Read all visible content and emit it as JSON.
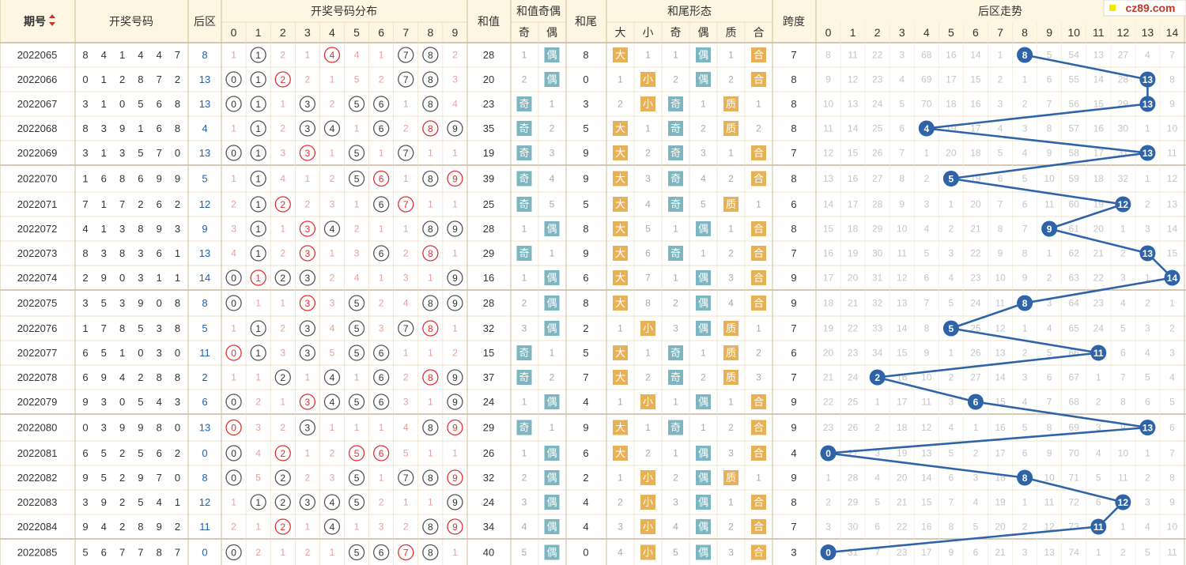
{
  "watermark": "cz89.com",
  "headers": {
    "issue": "期号",
    "sort_icon": "sort-up-down-icon",
    "numbers": "开奖号码",
    "back": "后区",
    "dist": "开奖号码分布",
    "sum": "和值",
    "sum_parity": "和值奇偶",
    "odd": "奇",
    "even": "偶",
    "tail": "和尾",
    "tail_form": "和尾形态",
    "big": "大",
    "small": "小",
    "prime": "质",
    "composite": "合",
    "span": "跨度",
    "trend": "后区走势"
  },
  "dist_digits": [
    "0",
    "1",
    "2",
    "3",
    "4",
    "5",
    "6",
    "7",
    "8",
    "9"
  ],
  "trend_cols": [
    "0",
    "1",
    "2",
    "3",
    "4",
    "5",
    "6",
    "7",
    "8",
    "9",
    "10",
    "11",
    "12",
    "13",
    "14"
  ],
  "colors": {
    "header_bg": "#fdf6e3",
    "grid": "#ead9b8",
    "miss": "#c8c8c8",
    "red": "#e03030",
    "gold": "#e7b158",
    "teal": "#7db5c0",
    "ball": "#2f63a8",
    "back_blue": "#1f5fb0"
  },
  "rows": [
    {
      "issue": "2022065",
      "nums": [
        "8",
        "4",
        "1",
        "4",
        "4",
        "7"
      ],
      "back": "8",
      "dist": [
        "1",
        "①",
        "2",
        "1",
        "④",
        "4",
        "1",
        "⑦",
        "⑧",
        "2"
      ],
      "sum": "28",
      "so": "1",
      "se": "偶",
      "tail": "8",
      "tb": "大",
      "ts": "1",
      "to": "1",
      "te": "偶",
      "tp": "1",
      "tc": "合",
      "span": "7",
      "trend": [
        "8",
        "11",
        "22",
        "3",
        "68",
        "16",
        "14",
        "1",
        "8",
        "5",
        "54",
        "13",
        "27",
        "4",
        "7"
      ]
    },
    {
      "issue": "2022066",
      "nums": [
        "0",
        "1",
        "2",
        "8",
        "7",
        "2"
      ],
      "back": "13",
      "dist": [
        "⓪",
        "①",
        "②",
        "2",
        "1",
        "5",
        "2",
        "⑦",
        "⑧",
        "3"
      ],
      "sum": "20",
      "so": "2",
      "se": "偶",
      "tail": "0",
      "tb": "1",
      "ts": "小",
      "to": "2",
      "te": "偶",
      "tp": "2",
      "tc": "合",
      "span": "8",
      "trend": [
        "9",
        "12",
        "23",
        "4",
        "69",
        "17",
        "15",
        "2",
        "1",
        "6",
        "55",
        "14",
        "28",
        "13",
        "8"
      ]
    },
    {
      "issue": "2022067",
      "nums": [
        "3",
        "1",
        "0",
        "5",
        "6",
        "8"
      ],
      "back": "13",
      "dist": [
        "⓪",
        "①",
        "1",
        "③",
        "2",
        "⑤",
        "⑥",
        "1",
        "⑧",
        "4"
      ],
      "sum": "23",
      "so": "奇",
      "se": "1",
      "tail": "3",
      "tb": "2",
      "ts": "小",
      "to": "奇",
      "te": "1",
      "tp": "质",
      "tc": "1",
      "span": "8",
      "trend": [
        "10",
        "13",
        "24",
        "5",
        "70",
        "18",
        "16",
        "3",
        "2",
        "7",
        "56",
        "15",
        "29",
        "13",
        "9"
      ]
    },
    {
      "issue": "2022068",
      "nums": [
        "8",
        "3",
        "9",
        "1",
        "6",
        "8"
      ],
      "back": "4",
      "dist": [
        "1",
        "①",
        "2",
        "③",
        "④",
        "1",
        "⑥",
        "2",
        "⑧",
        "⑨"
      ],
      "sum": "35",
      "so": "奇",
      "se": "2",
      "tail": "5",
      "tb": "大",
      "ts": "1",
      "to": "奇",
      "te": "2",
      "tp": "质",
      "tc": "2",
      "span": "8",
      "trend": [
        "11",
        "14",
        "25",
        "6",
        "4",
        "19",
        "17",
        "4",
        "3",
        "8",
        "57",
        "16",
        "30",
        "1",
        "10"
      ]
    },
    {
      "issue": "2022069",
      "nums": [
        "3",
        "1",
        "3",
        "5",
        "7",
        "0"
      ],
      "back": "13",
      "dist": [
        "⓪",
        "①",
        "3",
        "③",
        "1",
        "⑤",
        "1",
        "⑦",
        "1",
        "1"
      ],
      "sum": "19",
      "so": "奇",
      "se": "3",
      "tail": "9",
      "tb": "大",
      "ts": "2",
      "to": "奇",
      "te": "3",
      "tp": "1",
      "tc": "合",
      "span": "7",
      "trend": [
        "12",
        "15",
        "26",
        "7",
        "1",
        "20",
        "18",
        "5",
        "4",
        "9",
        "58",
        "17",
        "31",
        "13",
        "11"
      ]
    },
    {
      "issue": "2022070",
      "nums": [
        "1",
        "6",
        "8",
        "6",
        "9",
        "9"
      ],
      "back": "5",
      "dist": [
        "1",
        "①",
        "4",
        "1",
        "2",
        "⑤",
        "⑥",
        "1",
        "⑧",
        "⑨"
      ],
      "sum": "39",
      "so": "奇",
      "se": "4",
      "tail": "9",
      "tb": "大",
      "ts": "3",
      "to": "奇",
      "te": "4",
      "tp": "2",
      "tc": "合",
      "span": "8",
      "trend": [
        "13",
        "16",
        "27",
        "8",
        "2",
        "5",
        "19",
        "6",
        "5",
        "10",
        "59",
        "18",
        "32",
        "1",
        "12"
      ]
    },
    {
      "issue": "2022071",
      "nums": [
        "7",
        "1",
        "7",
        "2",
        "6",
        "2"
      ],
      "back": "12",
      "dist": [
        "2",
        "①",
        "②",
        "2",
        "3",
        "1",
        "⑥",
        "⑦",
        "1",
        "1"
      ],
      "sum": "25",
      "so": "奇",
      "se": "5",
      "tail": "5",
      "tb": "大",
      "ts": "4",
      "to": "奇",
      "te": "5",
      "tp": "质",
      "tc": "1",
      "span": "6",
      "trend": [
        "14",
        "17",
        "28",
        "9",
        "3",
        "1",
        "20",
        "7",
        "6",
        "11",
        "60",
        "19",
        "12",
        "2",
        "13"
      ]
    },
    {
      "issue": "2022072",
      "nums": [
        "4",
        "1",
        "3",
        "8",
        "9",
        "3"
      ],
      "back": "9",
      "dist": [
        "3",
        "①",
        "1",
        "③",
        "④",
        "2",
        "1",
        "1",
        "⑧",
        "⑨"
      ],
      "sum": "28",
      "so": "1",
      "se": "偶",
      "tail": "8",
      "tb": "大",
      "ts": "5",
      "to": "1",
      "te": "偶",
      "tp": "1",
      "tc": "合",
      "span": "8",
      "trend": [
        "15",
        "18",
        "29",
        "10",
        "4",
        "2",
        "21",
        "8",
        "7",
        "9",
        "61",
        "20",
        "1",
        "3",
        "14"
      ]
    },
    {
      "issue": "2022073",
      "nums": [
        "8",
        "3",
        "8",
        "3",
        "6",
        "1"
      ],
      "back": "13",
      "dist": [
        "4",
        "①",
        "2",
        "③",
        "1",
        "3",
        "⑥",
        "2",
        "⑧",
        "1"
      ],
      "sum": "29",
      "so": "奇",
      "se": "1",
      "tail": "9",
      "tb": "大",
      "ts": "6",
      "to": "奇",
      "te": "1",
      "tp": "2",
      "tc": "合",
      "span": "7",
      "trend": [
        "16",
        "19",
        "30",
        "11",
        "5",
        "3",
        "22",
        "9",
        "8",
        "1",
        "62",
        "21",
        "2",
        "13",
        "15"
      ]
    },
    {
      "issue": "2022074",
      "nums": [
        "2",
        "9",
        "0",
        "3",
        "1",
        "1"
      ],
      "back": "14",
      "dist": [
        "⓪",
        "①",
        "②",
        "③",
        "2",
        "4",
        "1",
        "3",
        "1",
        "⑨"
      ],
      "sum": "16",
      "so": "1",
      "se": "偶",
      "tail": "6",
      "tb": "大",
      "ts": "7",
      "to": "1",
      "te": "偶",
      "tp": "3",
      "tc": "合",
      "span": "9",
      "trend": [
        "17",
        "20",
        "31",
        "12",
        "6",
        "4",
        "23",
        "10",
        "9",
        "2",
        "63",
        "22",
        "3",
        "1",
        "14"
      ]
    },
    {
      "issue": "2022075",
      "nums": [
        "3",
        "5",
        "3",
        "9",
        "0",
        "8"
      ],
      "back": "8",
      "dist": [
        "⓪",
        "1",
        "1",
        "③",
        "3",
        "⑤",
        "2",
        "4",
        "⑧",
        "⑨"
      ],
      "sum": "28",
      "so": "2",
      "se": "偶",
      "tail": "8",
      "tb": "大",
      "ts": "8",
      "to": "2",
      "te": "偶",
      "tp": "4",
      "tc": "合",
      "span": "9",
      "trend": [
        "18",
        "21",
        "32",
        "13",
        "7",
        "5",
        "24",
        "11",
        "8",
        "3",
        "64",
        "23",
        "4",
        "2",
        "1"
      ]
    },
    {
      "issue": "2022076",
      "nums": [
        "1",
        "7",
        "8",
        "5",
        "3",
        "8"
      ],
      "back": "5",
      "dist": [
        "1",
        "①",
        "2",
        "③",
        "4",
        "⑤",
        "3",
        "⑦",
        "⑧",
        "1"
      ],
      "sum": "32",
      "so": "3",
      "se": "偶",
      "tail": "2",
      "tb": "1",
      "ts": "小",
      "to": "3",
      "te": "偶",
      "tp": "质",
      "tc": "1",
      "span": "7",
      "trend": [
        "19",
        "22",
        "33",
        "14",
        "8",
        "5",
        "25",
        "12",
        "1",
        "4",
        "65",
        "24",
        "5",
        "3",
        "2"
      ]
    },
    {
      "issue": "2022077",
      "nums": [
        "6",
        "5",
        "1",
        "0",
        "3",
        "0"
      ],
      "back": "11",
      "dist": [
        "⓪",
        "①",
        "3",
        "③",
        "5",
        "⑤",
        "⑥",
        "1",
        "1",
        "2"
      ],
      "sum": "15",
      "so": "奇",
      "se": "1",
      "tail": "5",
      "tb": "大",
      "ts": "1",
      "to": "奇",
      "te": "1",
      "tp": "质",
      "tc": "2",
      "span": "6",
      "trend": [
        "20",
        "23",
        "34",
        "15",
        "9",
        "1",
        "26",
        "13",
        "2",
        "5",
        "66",
        "11",
        "6",
        "4",
        "3"
      ]
    },
    {
      "issue": "2022078",
      "nums": [
        "6",
        "9",
        "4",
        "2",
        "8",
        "8"
      ],
      "back": "2",
      "dist": [
        "1",
        "1",
        "②",
        "1",
        "④",
        "1",
        "⑥",
        "2",
        "⑧",
        "⑨"
      ],
      "sum": "37",
      "so": "奇",
      "se": "2",
      "tail": "7",
      "tb": "大",
      "ts": "2",
      "to": "奇",
      "te": "2",
      "tp": "质",
      "tc": "3",
      "span": "7",
      "trend": [
        "21",
        "24",
        "2",
        "16",
        "10",
        "2",
        "27",
        "14",
        "3",
        "6",
        "67",
        "1",
        "7",
        "5",
        "4"
      ]
    },
    {
      "issue": "2022079",
      "nums": [
        "9",
        "3",
        "0",
        "5",
        "4",
        "3"
      ],
      "back": "6",
      "dist": [
        "⓪",
        "2",
        "1",
        "③",
        "④",
        "⑤",
        "⑥",
        "3",
        "1",
        "⑨"
      ],
      "sum": "24",
      "so": "1",
      "se": "偶",
      "tail": "4",
      "tb": "1",
      "ts": "小",
      "to": "1",
      "te": "偶",
      "tp": "1",
      "tc": "合",
      "span": "9",
      "trend": [
        "22",
        "25",
        "1",
        "17",
        "11",
        "3",
        "6",
        "15",
        "4",
        "7",
        "68",
        "2",
        "8",
        "6",
        "5"
      ]
    },
    {
      "issue": "2022080",
      "nums": [
        "0",
        "3",
        "9",
        "9",
        "8",
        "0"
      ],
      "back": "13",
      "dist": [
        "⓪",
        "3",
        "2",
        "③",
        "1",
        "1",
        "1",
        "4",
        "⑧",
        "⑨"
      ],
      "sum": "29",
      "so": "奇",
      "se": "1",
      "tail": "9",
      "tb": "大",
      "ts": "1",
      "to": "奇",
      "te": "1",
      "tp": "2",
      "tc": "合",
      "span": "9",
      "trend": [
        "23",
        "26",
        "2",
        "18",
        "12",
        "4",
        "1",
        "16",
        "5",
        "8",
        "69",
        "3",
        "9",
        "13",
        "6"
      ]
    },
    {
      "issue": "2022081",
      "nums": [
        "6",
        "5",
        "2",
        "5",
        "6",
        "2"
      ],
      "back": "0",
      "dist": [
        "⓪",
        "4",
        "②",
        "1",
        "2",
        "⑤",
        "⑥",
        "5",
        "1",
        "1"
      ],
      "sum": "26",
      "so": "1",
      "se": "偶",
      "tail": "6",
      "tb": "大",
      "ts": "2",
      "to": "1",
      "te": "偶",
      "tp": "3",
      "tc": "合",
      "span": "4",
      "trend": [
        "0",
        "27",
        "3",
        "19",
        "13",
        "5",
        "2",
        "17",
        "6",
        "9",
        "70",
        "4",
        "10",
        "1",
        "7"
      ]
    },
    {
      "issue": "2022082",
      "nums": [
        "9",
        "5",
        "2",
        "9",
        "7",
        "0"
      ],
      "back": "8",
      "dist": [
        "⓪",
        "5",
        "②",
        "2",
        "3",
        "⑤",
        "1",
        "⑦",
        "⑧",
        "⑨"
      ],
      "sum": "32",
      "so": "2",
      "se": "偶",
      "tail": "2",
      "tb": "1",
      "ts": "小",
      "to": "2",
      "te": "偶",
      "tp": "质",
      "tc": "1",
      "span": "9",
      "trend": [
        "1",
        "28",
        "4",
        "20",
        "14",
        "6",
        "3",
        "18",
        "8",
        "10",
        "71",
        "5",
        "11",
        "2",
        "8"
      ]
    },
    {
      "issue": "2022083",
      "nums": [
        "3",
        "9",
        "2",
        "5",
        "4",
        "1"
      ],
      "back": "12",
      "dist": [
        "1",
        "①",
        "②",
        "③",
        "④",
        "⑤",
        "2",
        "1",
        "1",
        "⑨"
      ],
      "sum": "24",
      "so": "3",
      "se": "偶",
      "tail": "4",
      "tb": "2",
      "ts": "小",
      "to": "3",
      "te": "偶",
      "tp": "1",
      "tc": "合",
      "span": "8",
      "trend": [
        "2",
        "29",
        "5",
        "21",
        "15",
        "7",
        "4",
        "19",
        "1",
        "11",
        "72",
        "6",
        "12",
        "3",
        "9"
      ]
    },
    {
      "issue": "2022084",
      "nums": [
        "9",
        "4",
        "2",
        "8",
        "9",
        "2"
      ],
      "back": "11",
      "dist": [
        "2",
        "1",
        "②",
        "1",
        "④",
        "1",
        "3",
        "2",
        "⑧",
        "⑨"
      ],
      "sum": "34",
      "so": "4",
      "se": "偶",
      "tail": "4",
      "tb": "3",
      "ts": "小",
      "to": "4",
      "te": "偶",
      "tp": "2",
      "tc": "合",
      "span": "7",
      "trend": [
        "3",
        "30",
        "6",
        "22",
        "16",
        "8",
        "5",
        "20",
        "2",
        "12",
        "73",
        "11",
        "1",
        "4",
        "10"
      ]
    },
    {
      "issue": "2022085",
      "nums": [
        "5",
        "6",
        "7",
        "7",
        "8",
        "7"
      ],
      "back": "0",
      "dist": [
        "⓪",
        "2",
        "1",
        "2",
        "1",
        "⑤",
        "⑥",
        "⑦",
        "⑧",
        "1"
      ],
      "sum": "40",
      "so": "5",
      "se": "偶",
      "tail": "0",
      "tb": "4",
      "ts": "小",
      "to": "5",
      "te": "偶",
      "tp": "3",
      "tc": "合",
      "span": "3",
      "trend": [
        "0",
        "31",
        "7",
        "23",
        "17",
        "9",
        "6",
        "21",
        "3",
        "13",
        "74",
        "1",
        "2",
        "5",
        "11"
      ]
    }
  ]
}
